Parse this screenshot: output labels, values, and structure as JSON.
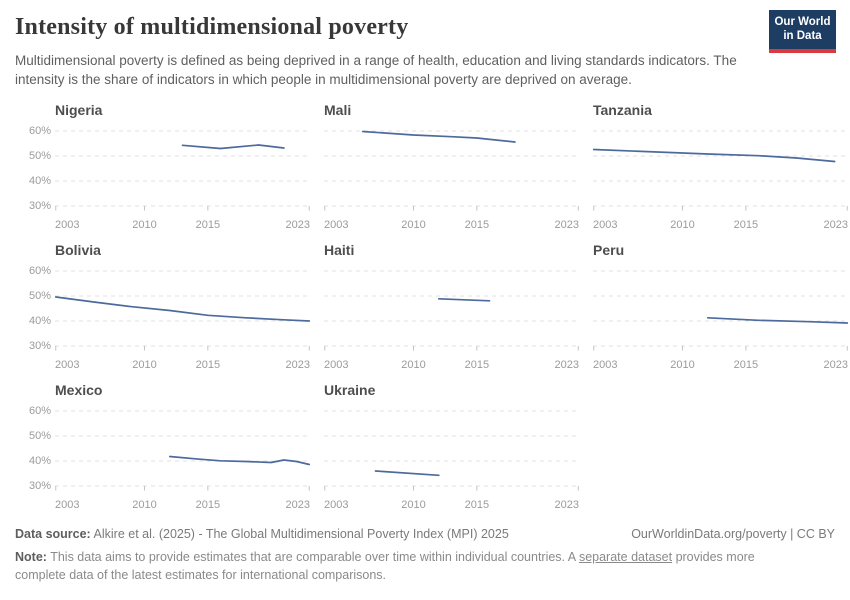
{
  "header": {
    "title": "Intensity of multidimensional poverty",
    "subtitle": "Multidimensional poverty is defined as being deprived in a range of health, education and living standards indicators. The intensity is the share of indicators in which people in multidimensional poverty are deprived on average.",
    "logo": {
      "line1": "Our World",
      "line2": "in Data",
      "bg_color": "#1d3d63",
      "accent_color": "#d93a3f"
    }
  },
  "chart_data": {
    "type": "line",
    "title": "Intensity of multidimensional poverty",
    "unit": "%",
    "x_range": [
      2003,
      2023
    ],
    "x_ticks": [
      2003,
      2010,
      2015,
      2023
    ],
    "y_ticks": [
      60,
      50,
      40,
      30
    ],
    "y_tick_labels": [
      "60%",
      "50%",
      "40%",
      "30%"
    ],
    "ylim": [
      30,
      62
    ],
    "grid": true,
    "legend": "none",
    "line_color": "#4c6a9c",
    "facets": [
      {
        "title": "Nigeria",
        "show_y_labels": true,
        "points": [
          [
            2013,
            54.3
          ],
          [
            2016,
            53.0
          ],
          [
            2019,
            54.4
          ],
          [
            2021,
            53.2
          ]
        ]
      },
      {
        "title": "Mali",
        "show_y_labels": false,
        "points": [
          [
            2006,
            59.8
          ],
          [
            2010,
            58.4
          ],
          [
            2013,
            57.7
          ],
          [
            2015,
            57.2
          ],
          [
            2018,
            55.6
          ]
        ]
      },
      {
        "title": "Tanzania",
        "show_y_labels": false,
        "points": [
          [
            2003,
            52.6
          ],
          [
            2008,
            51.6
          ],
          [
            2012,
            50.8
          ],
          [
            2016,
            50.1
          ],
          [
            2019,
            49.2
          ],
          [
            2022,
            47.8
          ]
        ]
      },
      {
        "title": "Bolivia",
        "show_y_labels": true,
        "points": [
          [
            2003,
            49.6
          ],
          [
            2006,
            47.6
          ],
          [
            2009,
            45.7
          ],
          [
            2012,
            44.2
          ],
          [
            2015,
            42.3
          ],
          [
            2018,
            41.3
          ],
          [
            2021,
            40.5
          ],
          [
            2023,
            40.0
          ]
        ]
      },
      {
        "title": "Haiti",
        "show_y_labels": false,
        "points": [
          [
            2012,
            48.9
          ],
          [
            2016,
            48.1
          ]
        ]
      },
      {
        "title": "Peru",
        "show_y_labels": false,
        "points": [
          [
            2012,
            41.3
          ],
          [
            2016,
            40.3
          ],
          [
            2020,
            39.7
          ],
          [
            2023,
            39.2
          ]
        ]
      },
      {
        "title": "Mexico",
        "show_y_labels": true,
        "points": [
          [
            2012,
            41.8
          ],
          [
            2014,
            40.9
          ],
          [
            2016,
            40.1
          ],
          [
            2018,
            39.8
          ],
          [
            2020,
            39.4
          ],
          [
            2021,
            40.4
          ],
          [
            2022,
            39.8
          ],
          [
            2023,
            38.6
          ]
        ]
      },
      {
        "title": "Ukraine",
        "show_y_labels": false,
        "points": [
          [
            2007,
            36.0
          ],
          [
            2012,
            34.3
          ]
        ]
      }
    ]
  },
  "footer": {
    "source_label": "Data source:",
    "source_text": "Alkire et al. (2025) - The Global Multidimensional Poverty Index (MPI) 2025",
    "attribution": "OurWorldinData.org/poverty | CC BY",
    "note_label": "Note:",
    "note_before_link": "This data aims to provide estimates that are comparable over time within individual countries. A",
    "note_link": "separate dataset",
    "note_after_link": "provides more complete data of the latest estimates for international comparisons."
  }
}
